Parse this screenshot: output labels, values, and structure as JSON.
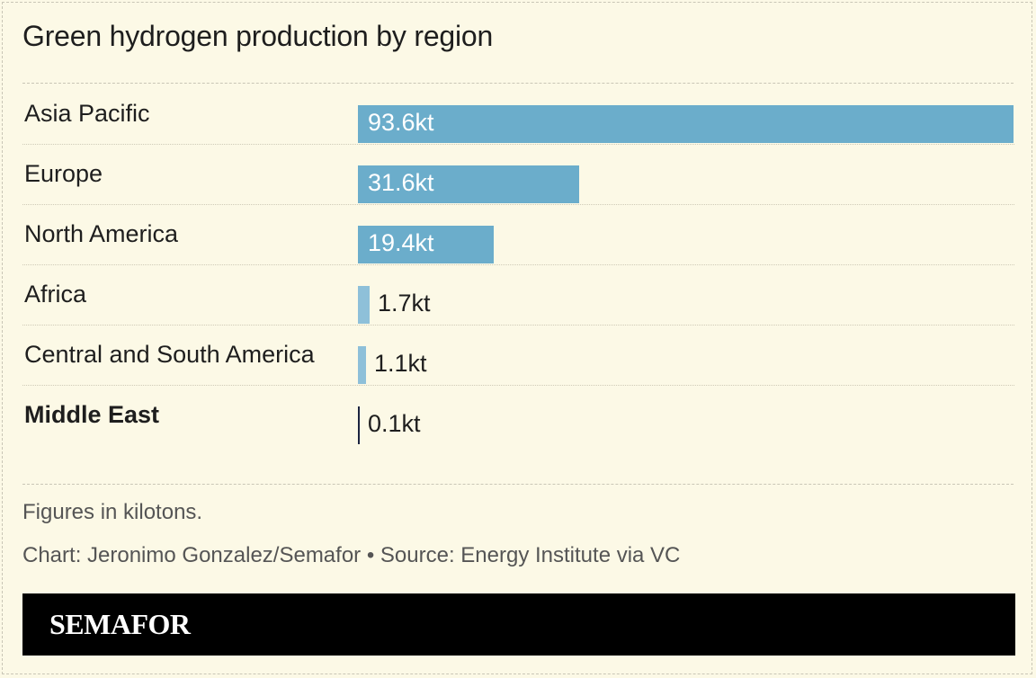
{
  "chart_data": {
    "type": "bar",
    "orientation": "horizontal",
    "title": "Green hydrogen production by region",
    "unit_suffix": "kt",
    "categories": [
      "Asia Pacific",
      "Europe",
      "North America",
      "Africa",
      "Central and South America",
      "Middle East"
    ],
    "values": [
      93.6,
      31.6,
      19.4,
      1.7,
      1.1,
      0.1
    ],
    "value_labels": [
      "93.6kt",
      "31.6kt",
      "19.4kt",
      "1.7kt",
      "1.1kt",
      "0.1kt"
    ],
    "highlighted_category": "Middle East",
    "xlim": [
      0,
      93.6
    ],
    "bar_color": "#6badcb",
    "highlight_color": "#1b2440",
    "grid": false
  },
  "notes": {
    "units": "Figures in kilotons.",
    "credit": "Chart: Jeronimo Gonzalez/Semafor • Source: Energy Institute via VC"
  },
  "brand": {
    "name": "SEMAFOR"
  }
}
